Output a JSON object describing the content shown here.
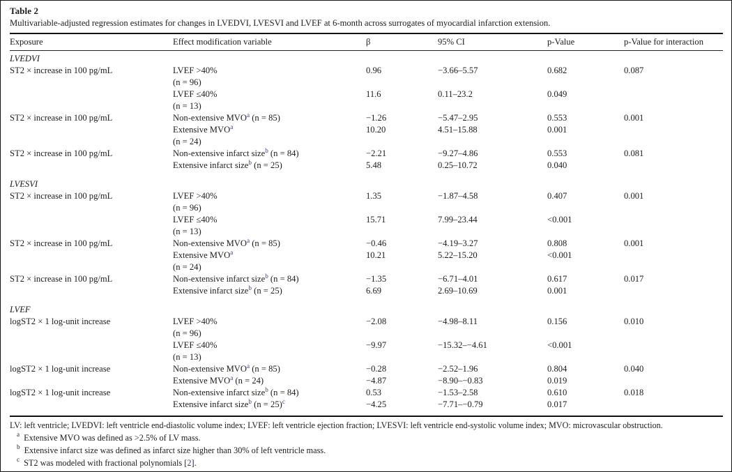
{
  "title": "Table 2",
  "caption": "Multivariable-adjusted regression estimates for changes in LVEDVI, LVESVI and LVEF at 6-month across surrogates of myocardial infarction extension.",
  "columns": [
    {
      "key": "exposure",
      "label": "Exposure"
    },
    {
      "key": "effect-modification-variable",
      "label": "Effect modification variable"
    },
    {
      "key": "beta",
      "label": "β"
    },
    {
      "key": "ci-95",
      "label": "95% CI"
    },
    {
      "key": "p-value",
      "label": "p-Value"
    },
    {
      "key": "p-value-interaction",
      "label": "p-Value for interaction"
    }
  ],
  "sections": [
    {
      "name": "LVEDVI",
      "rows": [
        {
          "exposure": "ST2 × increase in 100 pg/mL",
          "variable": "LVEF >40%",
          "beta": "0.96",
          "ci": "−3.66–5.57",
          "p": "0.682",
          "p_interaction": "0.087"
        },
        {
          "variable": "(n = 96)"
        },
        {
          "variable": "LVEF ≤40%",
          "beta": "11.6",
          "ci": "0.11–23.2",
          "p": "0.049"
        },
        {
          "variable": "(n = 13)"
        },
        {
          "exposure": "ST2 × increase in 100 pg/mL",
          "variable": "Non-extensive MVO^a (n = 85)",
          "beta": "−1.26",
          "ci": "−5.47–2.95",
          "p": "0.553",
          "p_interaction": "0.001"
        },
        {
          "variable": "Extensive MVO^a",
          "beta": "10.20",
          "ci": "4.51–15.88",
          "p": "0.001"
        },
        {
          "variable": "(n = 24)"
        },
        {
          "exposure": "ST2 × increase in 100 pg/mL",
          "variable": "Non-extensive infarct size^b (n = 84)",
          "beta": "−2.21",
          "ci": "−9.27–4.86",
          "p": "0.553",
          "p_interaction": "0.081"
        },
        {
          "variable": "Extensive infarct size^b (n = 25)",
          "beta": "5.48",
          "ci": "0.25–10.72",
          "p": "0.040"
        }
      ]
    },
    {
      "name": "LVESVI",
      "rows": [
        {
          "exposure": "ST2 × increase in 100 pg/mL",
          "variable": "LVEF >40%",
          "beta": "1.35",
          "ci": "−1.87–4.58",
          "p": "0.407",
          "p_interaction": "0.001"
        },
        {
          "variable": "(n = 96)"
        },
        {
          "variable": "LVEF ≤40%",
          "beta": "15.71",
          "ci": "7.99–23.44",
          "p": "<0.001"
        },
        {
          "variable": "(n = 13)"
        },
        {
          "exposure": "ST2 × increase in 100 pg/mL",
          "variable": "Non-extensive MVO^a (n = 85)",
          "beta": "−0.46",
          "ci": "−4.19–3.27",
          "p": "0.808",
          "p_interaction": "0.001"
        },
        {
          "variable": "Extensive MVO^a",
          "beta": "10.21",
          "ci": "5.22–15.20",
          "p": "<0.001"
        },
        {
          "variable": "(n = 24)"
        },
        {
          "exposure": "ST2 × increase in 100 pg/mL",
          "variable": "Non-extensive infarct size^b (n = 84)",
          "beta": "−1.35",
          "ci": "−6.71–4.01",
          "p": "0.617",
          "p_interaction": "0.017"
        },
        {
          "variable": "Extensive infarct size^b (n = 25)",
          "beta": "6.69",
          "ci": "2.69–10.69",
          "p": "0.001"
        }
      ]
    },
    {
      "name": "LVEF",
      "rows": [
        {
          "exposure": "logST2 × 1 log-unit increase",
          "variable": "LVEF >40%",
          "beta": "−2.08",
          "ci": "−4.98–8.11",
          "p": "0.156",
          "p_interaction": "0.010"
        },
        {
          "variable": "(n = 96)"
        },
        {
          "variable": "LVEF ≤40%",
          "beta": "−9.97",
          "ci": "−15.32–−4.61",
          "p": "<0.001"
        },
        {
          "variable": "(n = 13)"
        },
        {
          "exposure": "logST2 × 1 log-unit increase",
          "variable": "Non-extensive MVO^a (n = 85)",
          "beta": "−0.28",
          "ci": "−2.52–1.96",
          "p": "0.804",
          "p_interaction": "0.040"
        },
        {
          "variable": "Extensive MVO^a (n = 24)",
          "beta": "−4.87",
          "ci": "−8.90–−0.83",
          "p": "0.019"
        },
        {
          "exposure": "logST2 × 1 log-unit increase",
          "variable": "Non-extensive infarct size^b (n = 84)",
          "beta": "0.53",
          "ci": "−1.53–2.58",
          "p": "0.610",
          "p_interaction": "0.018"
        },
        {
          "variable": "Extensive infarct size^b (n = 25)^c",
          "beta": "−4.25",
          "ci": "−7.71–−0.79",
          "p": "0.017"
        }
      ]
    }
  ],
  "footnotes": {
    "abbreviations": "LV: left ventricle; LVEDVI: left ventricle end-diastolic volume index; LVEF: left ventricle ejection fraction; LVESVI: left ventricle end-systolic volume index; MVO: microvascular obstruction.",
    "items": [
      {
        "marker": "a",
        "text": "Extensive MVO was defined as >2.5% of LV mass."
      },
      {
        "marker": "b",
        "text": "Extensive infarct size was defined as infarct size higher than 30% of left ventricle mass."
      },
      {
        "marker": "c",
        "text": "ST2 was modeled with fractional polynomials [((2))]."
      }
    ]
  },
  "colors": {
    "link_blue": "#2e3d93",
    "text": "#1c1c1c",
    "rule": "#111111",
    "background": "#ffffff"
  }
}
